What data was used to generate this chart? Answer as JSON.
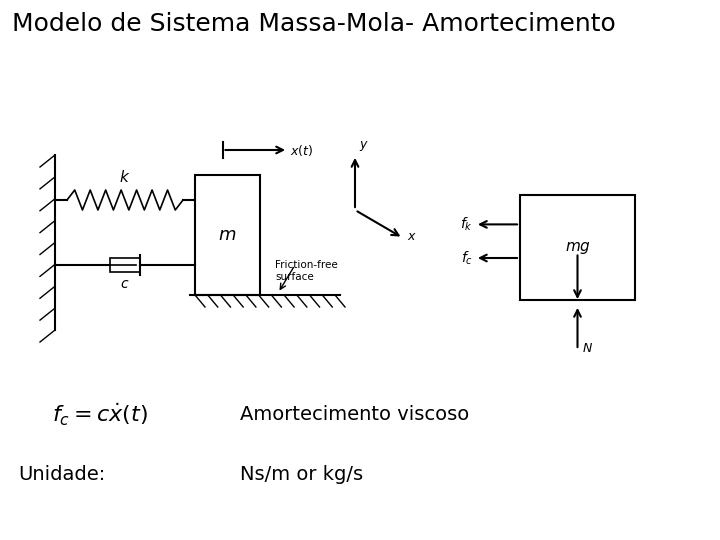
{
  "title": "Modelo de Sistema Massa-Mola- Amortecimento",
  "title_fontsize": 18,
  "background_color": "#ffffff",
  "formula_text": "$f_c = c\\dot{x}(t)$",
  "viscous_text": "Amortecimento viscoso",
  "unit_label": "Unidade:",
  "unit_value": "Ns/m or kg/s",
  "text_color": "#000000"
}
